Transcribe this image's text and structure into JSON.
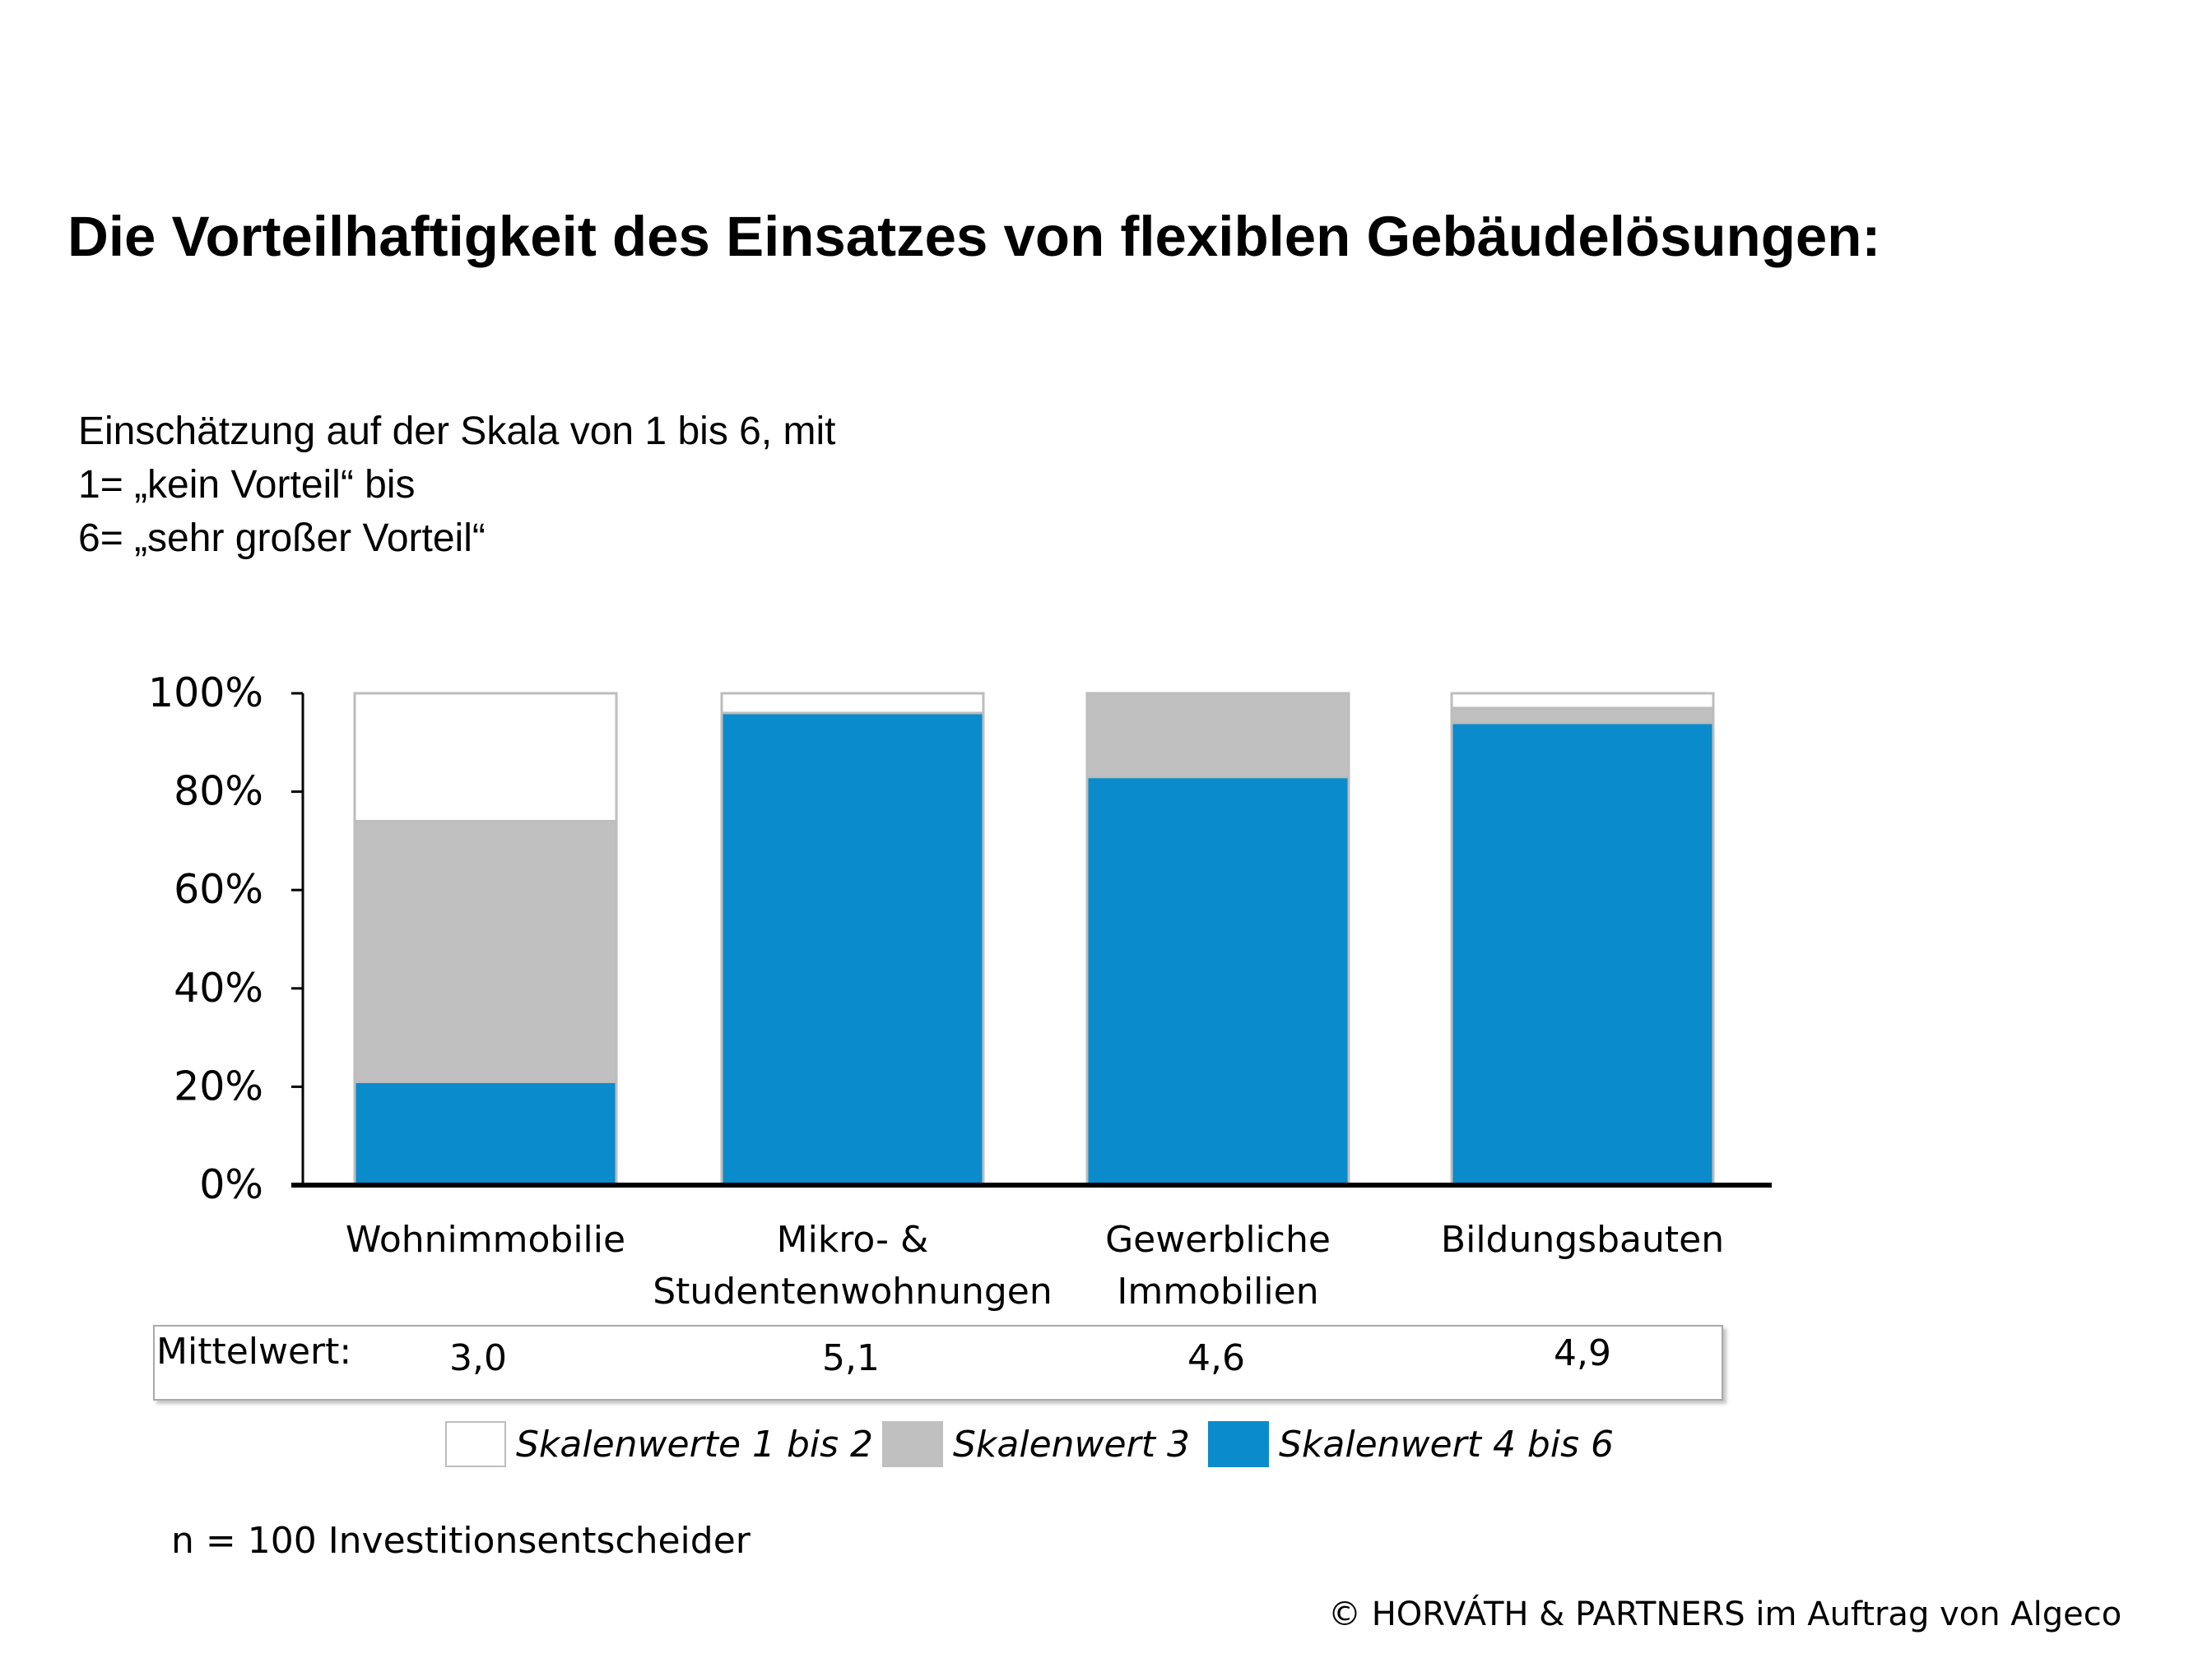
{
  "title": "Die Vorteilhaftigkeit des Einsatzes von flexiblen Gebäudelösungen:",
  "subtitle_lines": [
    "Einschätzung auf der Skala von 1 bis 6, mit",
    "1= „kein Vorteil“ bis",
    "6= „sehr großer Vorteil“"
  ],
  "chart_data": {
    "type": "bar",
    "stacked": true,
    "percent": true,
    "categories": [
      [
        "Wohnimmobilie"
      ],
      [
        "Mikro- &",
        "Studentenwohnungen"
      ],
      [
        "Gewerbliche",
        "Immobilien"
      ],
      [
        "Bildungsbauten"
      ]
    ],
    "series": [
      {
        "name": "Skalenwert 4 bis 6",
        "color": "#0a8bcb",
        "values": [
          21,
          96,
          83,
          94
        ]
      },
      {
        "name": "Skalenwert 3",
        "color": "#c0c0c0",
        "values": [
          53,
          0,
          17,
          3
        ]
      },
      {
        "name": "Skalenwerte 1 bis 2",
        "color": "#ffffff",
        "values": [
          26,
          4,
          0,
          3
        ]
      }
    ],
    "yticks": [
      "0%",
      "20%",
      "40%",
      "60%",
      "80%",
      "100%"
    ],
    "ylim": [
      0,
      100
    ],
    "grid": false,
    "legend_position": "bottom"
  },
  "means": {
    "label": "Mittelwert:",
    "values": [
      "3,0",
      "5,1",
      "4,6",
      "4,9"
    ]
  },
  "legend": [
    {
      "label": "Skalenwerte 1 bis 2",
      "color": "#ffffff"
    },
    {
      "label": "Skalenwert 3",
      "color": "#c0c0c0"
    },
    {
      "label": "Skalenwert 4 bis 6",
      "color": "#0a8bcb"
    }
  ],
  "footnote": "n = 100 Investitionsentscheider",
  "copyright": "© HORVÁTH & PARTNERS im Auftrag von Algeco"
}
